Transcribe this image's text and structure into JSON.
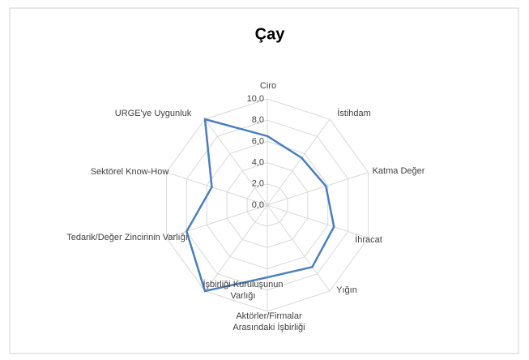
{
  "chart_data": {
    "type": "radar",
    "title": "Çay",
    "categories": [
      "Ciro",
      "İstihdam",
      "Katma Değer",
      "İhracat",
      "Yığın",
      "Aktörler/Firmalar Arasındaki İşbirliği",
      "İşbirliği Kuruluşunun Varlığı",
      "Tedarik/Değer Zincirinin Varlığı",
      "Sektörel Know-How",
      "URGE'ye Uygunluk"
    ],
    "series": [
      {
        "name": "Çay",
        "color": "#4a7ebb",
        "values": [
          6.5,
          5.5,
          5.8,
          6.6,
          7.2,
          6.8,
          10,
          8,
          5.5,
          10
        ]
      }
    ],
    "ylim": [
      0,
      10
    ],
    "yticks": [
      {
        "value": 0,
        "label": "0,0"
      },
      {
        "value": 2,
        "label": "2,0"
      },
      {
        "value": 4,
        "label": "4,0"
      },
      {
        "value": 6,
        "label": "6,0"
      },
      {
        "value": 8,
        "label": "8,0"
      },
      {
        "value": 10,
        "label": "10,0"
      }
    ],
    "grid": true
  }
}
